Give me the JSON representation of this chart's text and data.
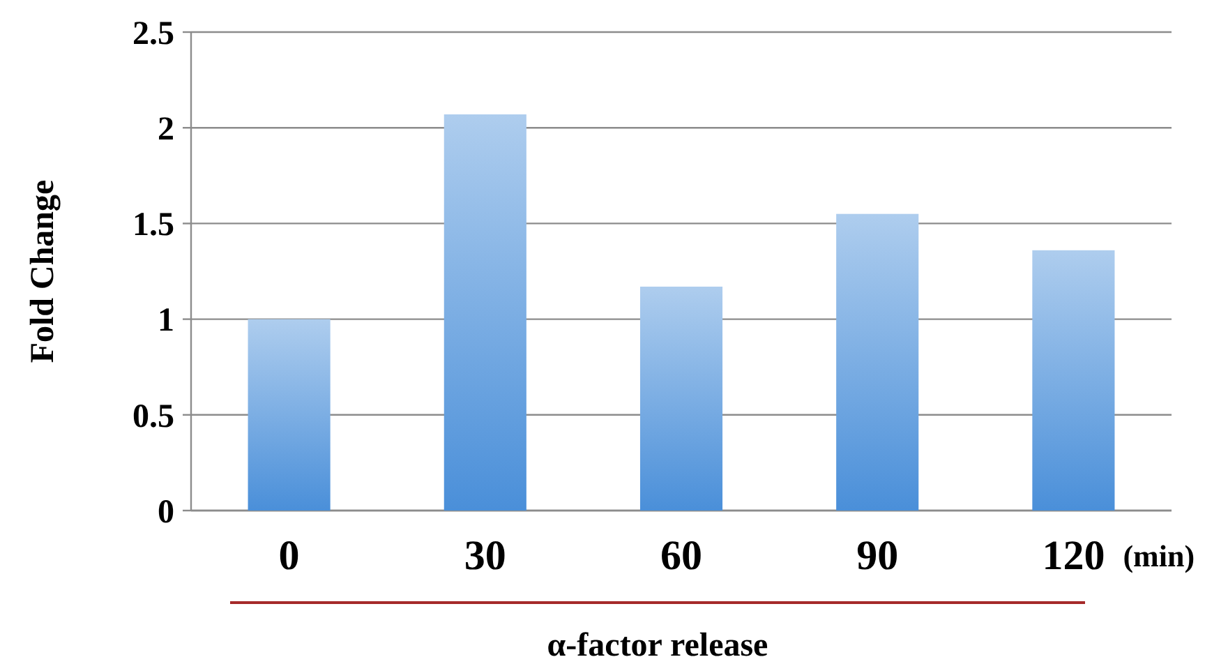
{
  "chart_data": {
    "type": "bar",
    "xlabel": "α-factor release",
    "ylabel": "Fold Change",
    "categories": [
      "0",
      "30",
      "60",
      "90",
      "120"
    ],
    "values": [
      1.0,
      2.07,
      1.17,
      1.55,
      1.36
    ],
    "color": "#4a8fd9",
    "ylim": [
      0,
      2.5
    ],
    "yticks": [
      0,
      0.5,
      1,
      1.5,
      2,
      2.5
    ],
    "grid": "y",
    "annotations": [
      "(min)"
    ]
  }
}
